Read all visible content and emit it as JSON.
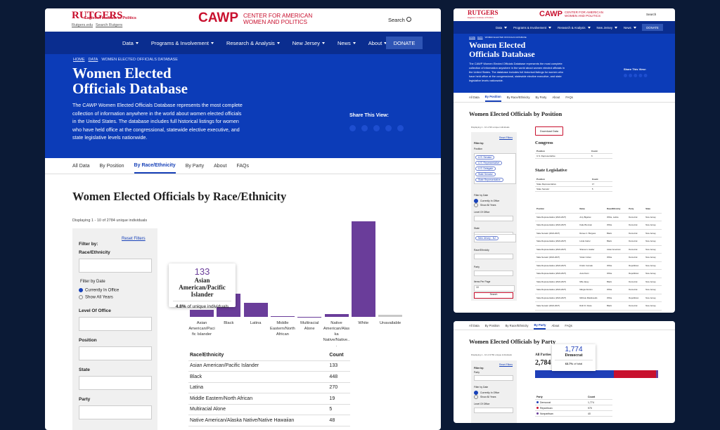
{
  "header": {
    "university_top": "RUTGERS",
    "university": "Eagleton Institute of Politics",
    "links": [
      "Rutgers.edu",
      "Search Rutgers"
    ],
    "logo": "CAWP",
    "logo_text": "CENTER FOR AMERICAN WOMEN AND POLITICS",
    "search": "Search"
  },
  "nav": {
    "items": [
      "Data",
      "Programs & Involvement",
      "Research & Analysis",
      "New Jersey",
      "News",
      "About"
    ],
    "donate": "DONATE"
  },
  "hero": {
    "breadcrumb": [
      "HOME",
      "DATA",
      "WOMEN ELECTED OFFICIALS DATABASE"
    ],
    "title": "Women Elected Officials Database",
    "description": "The CAWP Women Elected Officials Database represents the most complete collection of information anywhere in the world about women elected officials in the United States. The database includes full historical listings for women who have held office at the congressional, statewide elective executive, and state legislative levels nationwide.",
    "share": "Share This View:"
  },
  "tabs": {
    "items": [
      "All Data",
      "By Position",
      "By Race/Ethnicity",
      "By Party",
      "About",
      "FAQs"
    ],
    "active": 2
  },
  "displaying": "Displaying 1 - 10 of 2784 unique individuals",
  "filters": {
    "heading": "Filter by:",
    "reset": "Reset Filters",
    "fields": [
      "Race/Ethnicity"
    ],
    "date_label": "Filter by Date",
    "date_options": [
      "Currently In Office",
      "Show All Years"
    ],
    "more_fields": [
      "Level Of Office",
      "Position",
      "State",
      "Party"
    ]
  },
  "chart_data": [
    {
      "type": "bar",
      "title": "Women Elected Officials by Race/Ethnicity",
      "categories": [
        "Asian American/Pacific Islander",
        "Black",
        "Latina",
        "Middle Eastern/North African",
        "Multiracial Alone",
        "Native American/Alaska Native/Native...",
        "White",
        "Unavailable"
      ],
      "values": [
        133,
        448,
        270,
        19,
        5,
        48,
        1860,
        40
      ],
      "colors": [
        "#6a3d9a",
        "#6a3d9a",
        "#6a3d9a",
        "#6a3d9a",
        "#6a3d9a",
        "#6a3d9a",
        "#6a3d9a",
        "#c8c8c8"
      ],
      "ylim": [
        0,
        1900
      ]
    },
    {
      "type": "stacked-bar",
      "title": "Women Elected Officials by Party",
      "total_label": "All Parties",
      "total": {
        "value": 2784,
        "label": "2,784"
      },
      "series": [
        {
          "name": "Democrat",
          "color": "#1f3fb8",
          "values": [
            1774
          ],
          "value_labels": [
            "1,774"
          ]
        },
        {
          "name": "Republican",
          "color": "#c8102e",
          "values": [
            970
          ]
        },
        {
          "name": "Nonpartisan",
          "color": "#6a3d9a",
          "values": [
            40
          ]
        }
      ],
      "xlim": [
        0,
        2784
      ]
    }
  ],
  "tooltip": {
    "share": {
      "value": 4.8,
      "label": "4.8%"
    },
    "text": "of unique individuals"
  },
  "table": {
    "columns": [
      "Race/Ethnicity",
      "Count"
    ],
    "rows": [
      [
        "Asian American/Pacific Islander",
        "133"
      ],
      [
        "Black",
        "448"
      ],
      [
        "Latina",
        "270"
      ],
      [
        "Middle Eastern/North African",
        "19"
      ],
      [
        "Multiracial Alone",
        "5"
      ],
      [
        "Native American/Alaska Native/Native Hawaiian",
        "48"
      ]
    ]
  },
  "position_view": {
    "tabs_active": 1,
    "title": "Women Elected Officials by Position",
    "displaying": "Displaying 1 - 10 of 96 unique individuals",
    "download": "Download Data",
    "filters": {
      "heading": "Filter by:",
      "reset": "Reset Filters",
      "position": "Position",
      "chips": [
        "U.S. Senator",
        "U.S. Representative",
        "U.S. Delegate",
        "State Senator",
        "State Representative"
      ],
      "date_label": "Filter by Date",
      "date_options": [
        "Currently In Office",
        "Show All Years"
      ],
      "level": "Level Of Office",
      "state": "State",
      "state_chip": "New Jersey - NJ",
      "race": "Race/Ethnicity",
      "party": "Party",
      "per_page": "Items Per Page",
      "per_page_value": "10",
      "search": "Search"
    },
    "congress": {
      "title": "Congress",
      "columns": [
        "Position",
        "Count"
      ],
      "rows": [
        [
          "U.S. Representative",
          "6"
        ]
      ]
    },
    "state_legislative": {
      "title": "State Legislative",
      "columns": [
        "Position",
        "Count"
      ],
      "rows": [
        [
          "State Representative",
          "17"
        ],
        [
          "State Senator",
          "5"
        ]
      ]
    },
    "people": {
      "columns": [
        "Position",
        "Name",
        "Race/Ethnicity",
        "Party",
        "State"
      ],
      "rows": [
        [
          "State Representative (2024-2027)",
          "Amy Bigelow",
          "White, Latina",
          "Democrat",
          "New Jersey"
        ],
        [
          "State Representative (2024-2027)",
          "Katie Brennan",
          "White",
          "Democrat",
          "New Jersey"
        ],
        [
          "State Senator (2024-2027)",
          "Renee C. Burgess",
          "Black",
          "Democrat",
          "New Jersey"
        ],
        [
          "State Representative (2024-2027)",
          "Linda Carter",
          "Black",
          "Democrat",
          "New Jersey"
        ],
        [
          "State Representative (2024-2027)",
          "Shama A. Haider",
          "Asian American",
          "Democrat",
          "New Jersey"
        ],
        [
          "State Senator (2024-2027)",
          "Vivian Cohen",
          "White",
          "Democrat",
          "New Jersey"
        ],
        [
          "State Representative (2024-2027)",
          "Kristin Corrado",
          "White",
          "Republican",
          "New Jersey"
        ],
        [
          "State Representative (2024-2027)",
          "Aura Dunn",
          "White",
          "Republican",
          "New Jersey"
        ],
        [
          "State Representative (2024-2027)",
          "Mila Jasey",
          "Black",
          "Democrat",
          "New Jersey"
        ],
        [
          "State Representative (2024-2027)",
          "Margie Donlon",
          "White",
          "Democrat",
          "New Jersey"
        ],
        [
          "State Representative (2024-2027)",
          "Michele Matsikoudis",
          "White",
          "Republican",
          "New Jersey"
        ],
        [
          "State Senator (2024-2027)",
          "Ruth D. Dowe",
          "Black",
          "Democrat",
          "New Jersey"
        ]
      ]
    }
  },
  "party_view": {
    "tabs_active": 3,
    "displaying": "Displaying 1 - 10 of 2784 unique individuals",
    "filters": {
      "heading": "Filter by:",
      "reset": "Reset Filters",
      "party": "Party",
      "date_label": "Filter by Date",
      "date_options": [
        "Currently In Office",
        "Show All Years"
      ],
      "level": "Level Of Office"
    },
    "tooltip": {
      "share": {
        "value": 63.7,
        "label": "63.7%"
      },
      "text": "of total"
    },
    "table": {
      "columns": [
        "Party",
        "Count"
      ],
      "rows": [
        [
          "Democrat",
          "1,774"
        ],
        [
          "Republican",
          "970"
        ],
        [
          "Nonpartisan",
          "40"
        ]
      ]
    }
  }
}
